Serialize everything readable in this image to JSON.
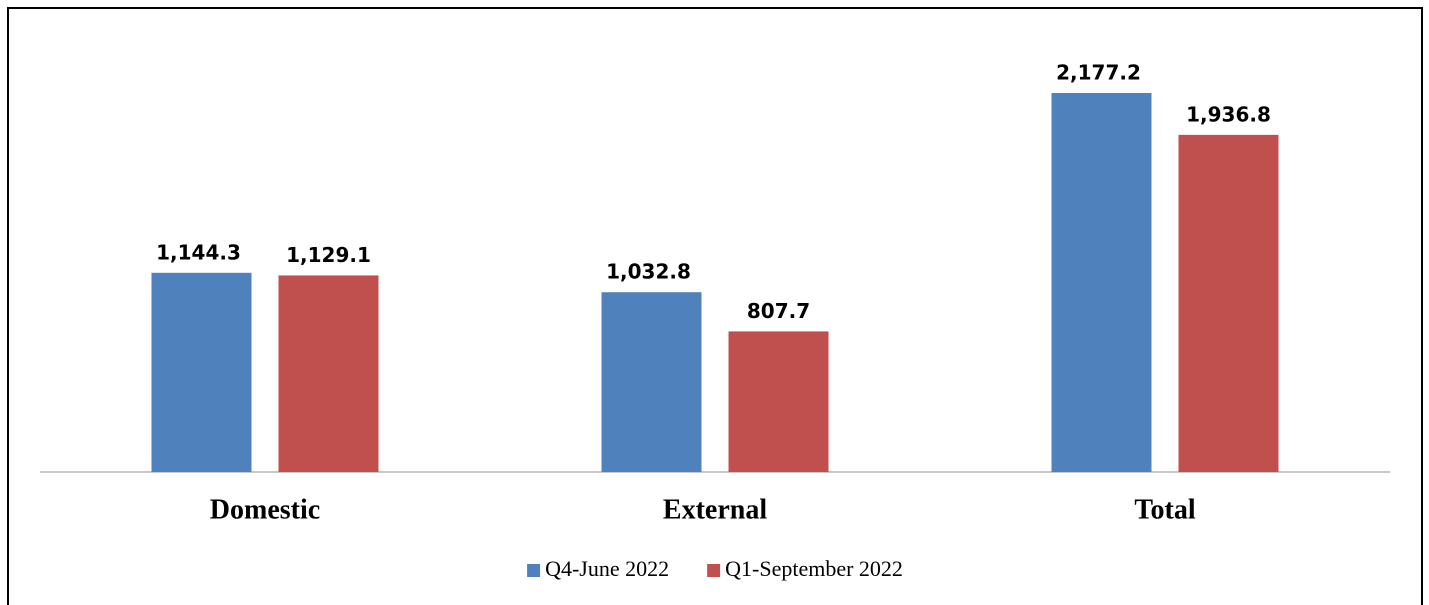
{
  "chart_data": {
    "type": "bar",
    "categories": [
      "Domestic",
      "External",
      "Total"
    ],
    "series": [
      {
        "name": "Q4-June 2022",
        "color": "#4f81bd",
        "values": [
          1144.3,
          1032.8,
          2177.2
        ],
        "value_labels": [
          "1,144.3",
          "1,032.8",
          "2,177.2"
        ]
      },
      {
        "name": "Q1-September 2022",
        "color": "#c0504d",
        "values": [
          1129.1,
          807.7,
          1936.8
        ],
        "value_labels": [
          "1,129.1",
          "807.7",
          "1,936.8"
        ]
      }
    ],
    "legend": "bottom"
  }
}
